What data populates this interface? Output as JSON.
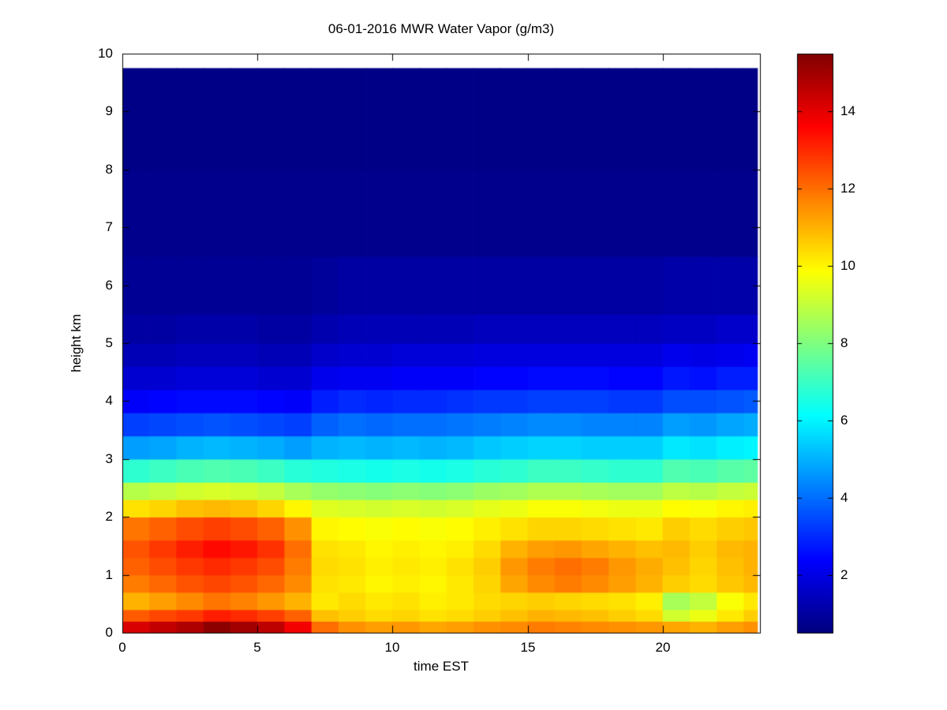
{
  "chart_data": {
    "type": "heatmap",
    "title": "06-01-2016 MWR Water Vapor (g/m3)",
    "xlabel": "time EST",
    "ylabel": "height km",
    "xlim": [
      0,
      23.6
    ],
    "ylim": [
      0,
      10
    ],
    "xticks": [
      0,
      5,
      10,
      15,
      20
    ],
    "yticks": [
      0,
      1,
      2,
      3,
      4,
      5,
      6,
      7,
      8,
      9,
      10
    ],
    "clim": [
      0.5,
      15.5
    ],
    "colormap": "jet",
    "colorbar_ticks": [
      2,
      4,
      6,
      8,
      10,
      12,
      14
    ],
    "grid": false,
    "x_edges": [
      0,
      1,
      2,
      3,
      4,
      5,
      6,
      7,
      8,
      9,
      10,
      11,
      12,
      13,
      14,
      15,
      16,
      17,
      18,
      19,
      20,
      21,
      22,
      23,
      23.5
    ],
    "y_edges": [
      0,
      0.2,
      0.4,
      0.7,
      1.0,
      1.3,
      1.6,
      2.0,
      2.3,
      2.6,
      3.0,
      3.4,
      3.8,
      4.2,
      4.6,
      5.0,
      5.5,
      6.5,
      8.0,
      9.75
    ],
    "values_order": "rows bottom-to-top, cols left-to-right, units g/m3",
    "values": [
      [
        14.2,
        14.5,
        14.8,
        15.3,
        15.0,
        14.6,
        13.8,
        12.0,
        11.5,
        11.3,
        11.4,
        11.2,
        11.3,
        11.5,
        11.6,
        11.8,
        11.7,
        11.6,
        11.5,
        11.4,
        11.2,
        11.0,
        11.3,
        11.5
      ],
      [
        12.3,
        12.6,
        12.8,
        13.2,
        13.0,
        12.7,
        12.2,
        10.8,
        10.6,
        10.4,
        10.5,
        10.3,
        10.4,
        10.6,
        10.8,
        11.0,
        10.9,
        10.8,
        10.6,
        10.4,
        9.2,
        9.6,
        10.2,
        10.6
      ],
      [
        11.0,
        11.3,
        11.6,
        11.9,
        11.7,
        11.4,
        11.0,
        10.2,
        10.4,
        10.2,
        10.3,
        10.1,
        10.2,
        10.4,
        10.5,
        10.6,
        10.5,
        10.4,
        10.3,
        10.1,
        8.6,
        9.0,
        9.8,
        10.2
      ],
      [
        11.8,
        12.1,
        12.4,
        12.6,
        12.4,
        12.1,
        11.6,
        10.3,
        10.2,
        10.0,
        10.1,
        10.0,
        10.2,
        10.5,
        11.2,
        11.6,
        11.8,
        11.6,
        11.3,
        11.0,
        10.6,
        10.4,
        10.7,
        10.9
      ],
      [
        12.2,
        12.5,
        12.8,
        13.0,
        12.8,
        12.5,
        11.8,
        10.4,
        10.3,
        10.1,
        10.2,
        10.1,
        10.3,
        10.6,
        11.4,
        11.8,
        12.0,
        11.8,
        11.4,
        11.1,
        10.8,
        10.5,
        10.8,
        11.0
      ],
      [
        12.4,
        12.8,
        13.2,
        13.5,
        13.3,
        12.9,
        12.0,
        10.3,
        10.2,
        10.0,
        10.1,
        10.0,
        10.1,
        10.4,
        11.0,
        11.3,
        11.4,
        11.2,
        11.0,
        10.8,
        10.9,
        10.6,
        10.9,
        11.0
      ],
      [
        11.9,
        12.2,
        12.5,
        12.7,
        12.5,
        12.2,
        11.5,
        10.0,
        9.9,
        9.8,
        9.9,
        9.8,
        9.9,
        10.1,
        10.3,
        10.5,
        10.5,
        10.4,
        10.3,
        10.2,
        10.6,
        10.4,
        10.6,
        10.7
      ],
      [
        10.3,
        10.5,
        10.8,
        10.9,
        10.8,
        10.5,
        10.0,
        9.4,
        9.3,
        9.2,
        9.3,
        9.2,
        9.3,
        9.5,
        9.6,
        9.8,
        9.8,
        9.7,
        9.6,
        9.6,
        9.9,
        9.8,
        10.0,
        10.1
      ],
      [
        8.8,
        9.0,
        9.2,
        9.3,
        9.2,
        9.0,
        8.6,
        8.3,
        8.2,
        8.1,
        8.2,
        8.1,
        8.2,
        8.4,
        8.5,
        8.7,
        8.7,
        8.6,
        8.5,
        8.5,
        8.9,
        8.8,
        9.0,
        9.1
      ],
      [
        6.8,
        7.0,
        7.2,
        7.3,
        7.2,
        7.0,
        6.7,
        6.6,
        6.5,
        6.4,
        6.5,
        6.4,
        6.5,
        6.7,
        6.8,
        7.0,
        7.0,
        6.9,
        6.8,
        6.8,
        7.3,
        7.2,
        7.4,
        7.5
      ],
      [
        4.7,
        4.8,
        5.0,
        5.1,
        5.0,
        4.9,
        4.7,
        5.0,
        5.1,
        5.0,
        5.1,
        5.0,
        5.1,
        5.3,
        5.4,
        5.5,
        5.5,
        5.4,
        5.4,
        5.4,
        5.8,
        5.7,
        5.9,
        6.0
      ],
      [
        3.3,
        3.4,
        3.5,
        3.6,
        3.5,
        3.4,
        3.3,
        3.8,
        4.0,
        3.9,
        4.0,
        4.0,
        4.1,
        4.2,
        4.3,
        4.4,
        4.4,
        4.3,
        4.3,
        4.3,
        4.7,
        4.6,
        4.8,
        4.9
      ],
      [
        2.3,
        2.4,
        2.5,
        2.5,
        2.5,
        2.4,
        2.3,
        2.8,
        3.0,
        2.9,
        3.0,
        3.0,
        3.1,
        3.2,
        3.2,
        3.3,
        3.3,
        3.3,
        3.2,
        3.2,
        3.5,
        3.5,
        3.6,
        3.7
      ],
      [
        1.7,
        1.7,
        1.8,
        1.8,
        1.8,
        1.7,
        1.7,
        2.1,
        2.2,
        2.2,
        2.3,
        2.3,
        2.3,
        2.4,
        2.4,
        2.5,
        2.5,
        2.5,
        2.4,
        2.4,
        2.7,
        2.6,
        2.8,
        2.8
      ],
      [
        1.3,
        1.3,
        1.4,
        1.4,
        1.4,
        1.3,
        1.3,
        1.6,
        1.7,
        1.7,
        1.8,
        1.8,
        1.8,
        1.9,
        1.9,
        1.9,
        1.9,
        1.9,
        1.9,
        1.9,
        2.1,
        2.0,
        2.1,
        2.2
      ],
      [
        1.0,
        1.0,
        1.1,
        1.1,
        1.1,
        1.0,
        1.0,
        1.2,
        1.3,
        1.3,
        1.3,
        1.3,
        1.3,
        1.4,
        1.4,
        1.4,
        1.4,
        1.4,
        1.4,
        1.4,
        1.5,
        1.5,
        1.6,
        1.6
      ],
      [
        0.8,
        0.8,
        0.8,
        0.8,
        0.8,
        0.8,
        0.8,
        0.9,
        1.0,
        1.0,
        1.0,
        1.0,
        1.0,
        1.0,
        1.0,
        1.0,
        1.0,
        1.0,
        1.0,
        1.0,
        1.1,
        1.1,
        1.1,
        1.1
      ],
      [
        0.7,
        0.7,
        0.7,
        0.7,
        0.7,
        0.7,
        0.7,
        0.7,
        0.7,
        0.7,
        0.7,
        0.7,
        0.7,
        0.7,
        0.7,
        0.7,
        0.7,
        0.7,
        0.7,
        0.7,
        0.7,
        0.7,
        0.7,
        0.7
      ],
      [
        0.6,
        0.6,
        0.6,
        0.6,
        0.6,
        0.6,
        0.6,
        0.6,
        0.6,
        0.6,
        0.6,
        0.6,
        0.6,
        0.6,
        0.6,
        0.6,
        0.6,
        0.6,
        0.6,
        0.6,
        0.6,
        0.6,
        0.6,
        0.6
      ]
    ]
  }
}
